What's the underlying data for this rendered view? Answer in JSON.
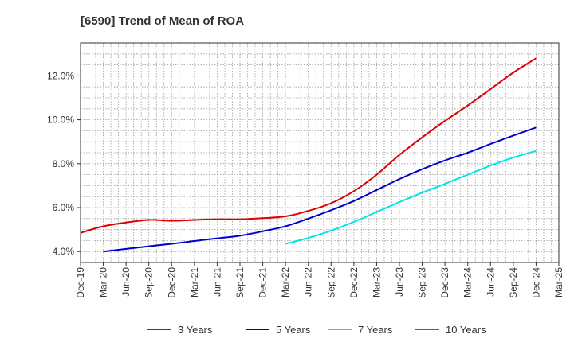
{
  "chart_data": {
    "type": "line",
    "title": "[6590]  Trend of Mean of ROA",
    "xlabel": "",
    "ylabel": "",
    "ylim": [
      3.5,
      13.5
    ],
    "y_ticks": [
      4.0,
      6.0,
      8.0,
      10.0,
      12.0
    ],
    "y_tick_labels": [
      "4.0%",
      "6.0%",
      "8.0%",
      "10.0%",
      "12.0%"
    ],
    "categories": [
      "Dec-19",
      "Mar-20",
      "Jun-20",
      "Sep-20",
      "Dec-20",
      "Mar-21",
      "Jun-21",
      "Sep-21",
      "Dec-21",
      "Mar-22",
      "Jun-22",
      "Sep-22",
      "Dec-22",
      "Mar-23",
      "Jun-23",
      "Sep-23",
      "Dec-23",
      "Mar-24",
      "Jun-24",
      "Sep-24",
      "Dec-24",
      "Mar-25"
    ],
    "grid": true,
    "legend_position": "bottom",
    "series": [
      {
        "name": "3 Years",
        "color": "#dd0000",
        "values": [
          4.85,
          5.15,
          5.32,
          5.44,
          5.4,
          5.44,
          5.47,
          5.47,
          5.52,
          5.6,
          5.85,
          6.2,
          6.75,
          7.5,
          8.4,
          9.2,
          9.95,
          10.65,
          11.4,
          12.15,
          12.8,
          null
        ]
      },
      {
        "name": "5 Years",
        "color": "#0000cc",
        "values": [
          null,
          4.0,
          4.12,
          4.24,
          4.35,
          4.48,
          4.6,
          4.72,
          4.92,
          5.15,
          5.5,
          5.88,
          6.3,
          6.8,
          7.3,
          7.75,
          8.15,
          8.5,
          8.9,
          9.28,
          9.65,
          null
        ]
      },
      {
        "name": "7 Years",
        "color": "#00e5e5",
        "values": [
          null,
          null,
          null,
          null,
          null,
          null,
          null,
          null,
          null,
          4.35,
          4.62,
          4.95,
          5.35,
          5.8,
          6.25,
          6.68,
          7.08,
          7.5,
          7.92,
          8.28,
          8.58,
          null
        ]
      },
      {
        "name": "10 Years",
        "color": "#228b22",
        "values": [
          null,
          null,
          null,
          null,
          null,
          null,
          null,
          null,
          null,
          null,
          null,
          null,
          null,
          null,
          null,
          null,
          null,
          null,
          null,
          null,
          null,
          null
        ]
      }
    ]
  }
}
